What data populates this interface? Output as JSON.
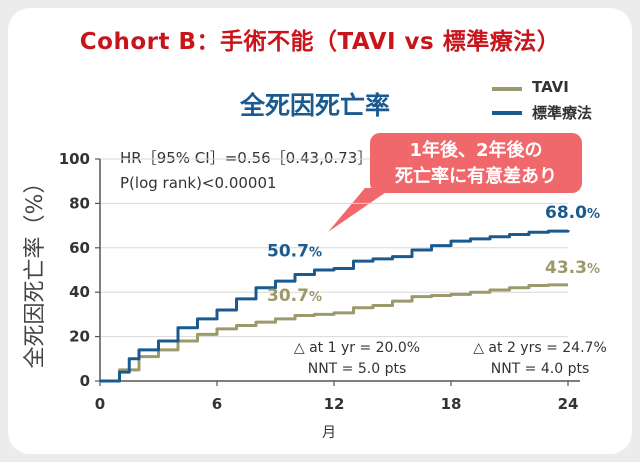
{
  "main_title": "Cohort B：手術不能（TAVI vs 標準療法）",
  "stats": {
    "hr": "HR［95% CI］=0.56［0.43,0.73］",
    "p": "P(log rank)<0.00001"
  },
  "callout": {
    "line1": "1年後、2年後の",
    "line2": "死亡率に有意差あり"
  },
  "notes": {
    "yr1": "△ at 1 yr = 20.0%",
    "nnt1": "NNT = 5.0 pts",
    "yr2": "△ at 2 yrs = 24.7%",
    "nnt2": "NNT = 4.0 pts"
  },
  "colors": {
    "tavi": "#9c9a6a",
    "standard": "#1b5a8f",
    "title": "#c8151c",
    "callout": "#f0686b"
  },
  "chart_data": {
    "type": "line",
    "title": "全死因死亡率",
    "xlabel": "月",
    "ylabel": "全死因死亡率（%）",
    "xlim": [
      0,
      24
    ],
    "ylim": [
      0,
      100
    ],
    "xticks": [
      0,
      6,
      12,
      18,
      24
    ],
    "yticks": [
      0,
      20,
      40,
      60,
      80,
      100
    ],
    "legend_position": "top-right",
    "series": [
      {
        "name": "TAVI",
        "color": "#9c9a6a",
        "x": [
          0,
          1,
          2,
          3,
          4,
          5,
          6,
          7,
          8,
          9,
          10,
          11,
          12,
          13,
          14,
          15,
          16,
          17,
          18,
          19,
          20,
          21,
          22,
          23,
          24
        ],
        "y": [
          0,
          5,
          11,
          14,
          18,
          21,
          23.5,
          25,
          26.5,
          28,
          29.5,
          30,
          30.7,
          33,
          34,
          36,
          38,
          38.5,
          39,
          40,
          41,
          42,
          43,
          43.3,
          43.3
        ],
        "labels": [
          {
            "x": 12,
            "y": 30.7,
            "text": "30.7"
          },
          {
            "x": 24,
            "y": 43.3,
            "text": "43.3"
          }
        ]
      },
      {
        "name": "標準療法",
        "color": "#1b5a8f",
        "x": [
          0,
          1,
          1.5,
          2,
          3,
          4,
          5,
          6,
          7,
          8,
          9,
          10,
          11,
          12,
          13,
          14,
          15,
          16,
          17,
          18,
          19,
          20,
          21,
          22,
          23,
          24
        ],
        "y": [
          0,
          4,
          10,
          14,
          18,
          24,
          28,
          32,
          37,
          42,
          45,
          48,
          50,
          50.7,
          54,
          55,
          56,
          59,
          61,
          63,
          64,
          65,
          66,
          67,
          67.5,
          68
        ],
        "labels": [
          {
            "x": 12,
            "y": 50.7,
            "text": "50.7"
          },
          {
            "x": 24,
            "y": 68,
            "text": "68.0"
          }
        ]
      }
    ],
    "value_suffix": "%"
  }
}
